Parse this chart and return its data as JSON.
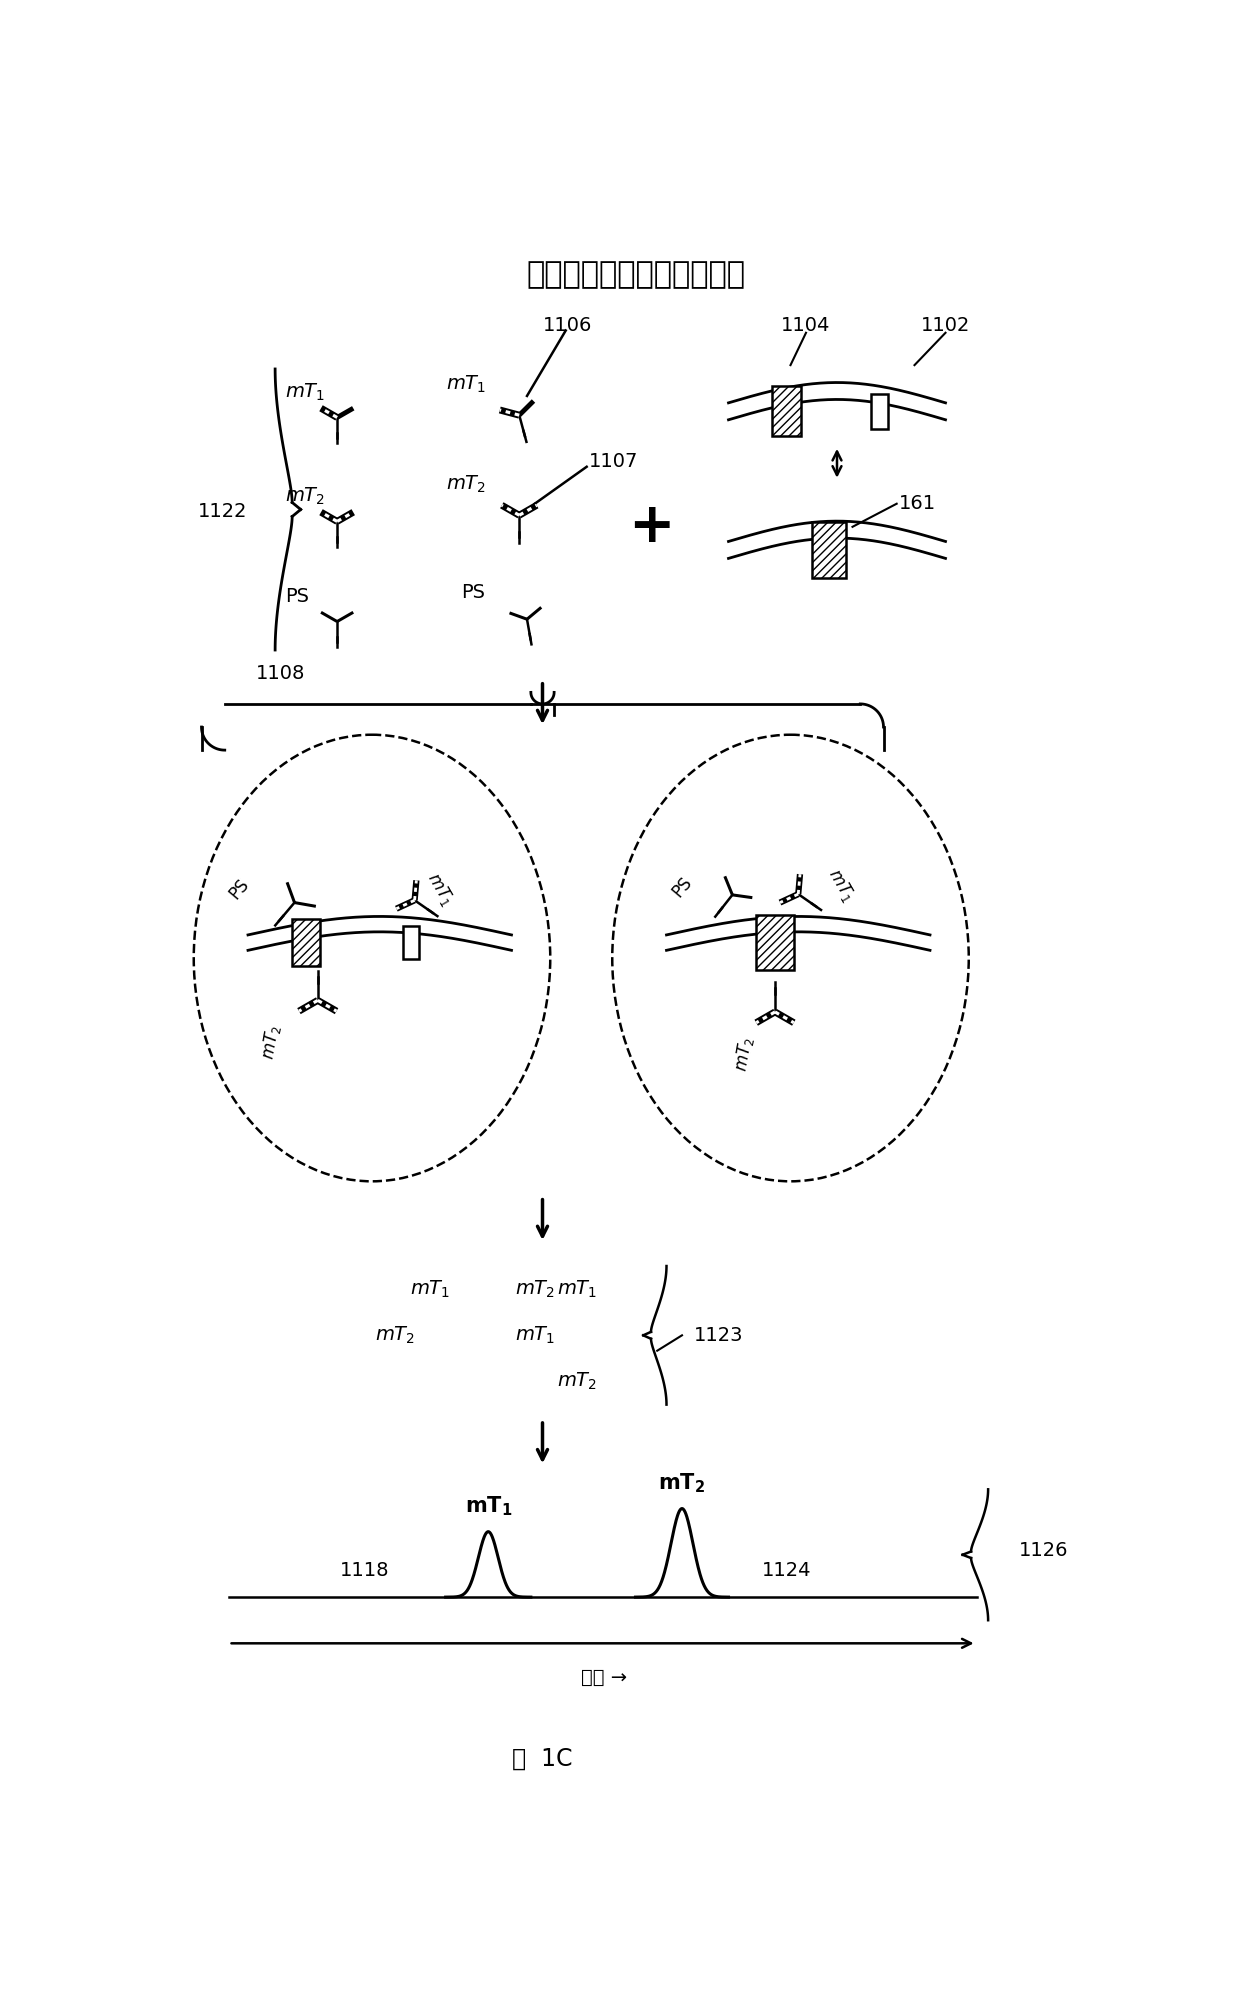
{
  "title": "细胞表面受体二聚体的测量",
  "figure_label": "图  1C",
  "background_color": "#ffffff",
  "fig_w": 12.4,
  "fig_h": 20.16,
  "dpi": 100,
  "label_1106": "1106",
  "label_1107": "1107",
  "label_1122": "1122",
  "label_1102": "1102",
  "label_1104": "1104",
  "label_161": "161",
  "label_1108": "1108",
  "label_1123": "1123",
  "label_1118": "1118",
  "label_1124": "1124",
  "label_1126": "1126",
  "time_label": "时间 →"
}
